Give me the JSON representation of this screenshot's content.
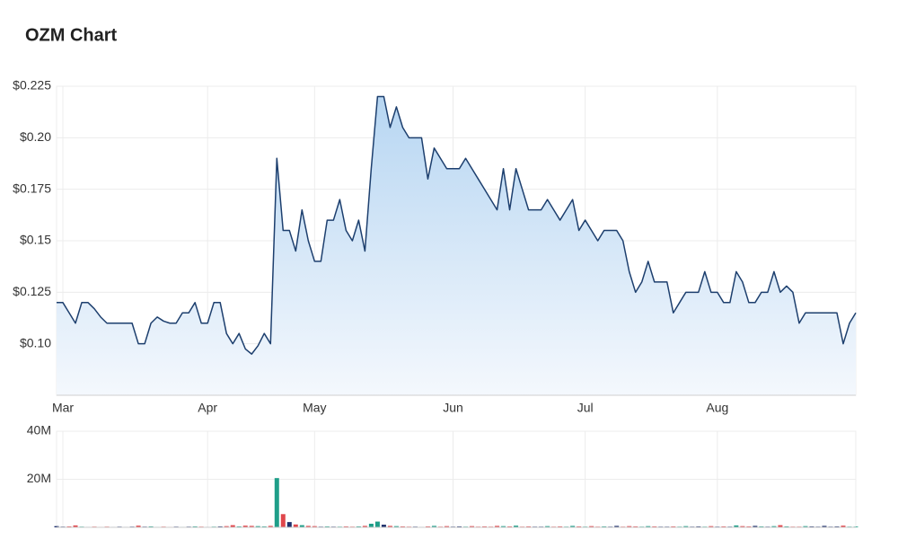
{
  "chart_data": [
    {
      "type": "area",
      "title": "OZM Chart",
      "color": "#1d3f6e",
      "grid": true,
      "categories": [
        null,
        "Mar",
        null,
        null,
        null,
        null,
        null,
        null,
        null,
        null,
        null,
        null,
        null,
        null,
        null,
        null,
        null,
        null,
        null,
        null,
        null,
        null,
        null,
        null,
        "Apr",
        null,
        null,
        null,
        null,
        null,
        null,
        null,
        null,
        null,
        null,
        null,
        null,
        null,
        null,
        null,
        null,
        "May",
        null,
        null,
        null,
        null,
        null,
        null,
        null,
        null,
        null,
        null,
        null,
        null,
        null,
        null,
        null,
        null,
        null,
        null,
        null,
        null,
        null,
        "Jun",
        null,
        null,
        null,
        null,
        null,
        null,
        null,
        null,
        null,
        null,
        null,
        null,
        null,
        null,
        null,
        null,
        null,
        null,
        null,
        null,
        "Jul",
        null,
        null,
        null,
        null,
        null,
        null,
        null,
        null,
        null,
        null,
        null,
        null,
        null,
        null,
        null,
        null,
        null,
        null,
        null,
        null,
        "Aug",
        null,
        null,
        null,
        null,
        null,
        null,
        null,
        null,
        null,
        null,
        null,
        null,
        null,
        null,
        null,
        null,
        null,
        null,
        null,
        null,
        null,
        null
      ],
      "values": [
        0.12,
        0.12,
        0.115,
        0.11,
        0.12,
        0.12,
        0.117,
        0.113,
        0.11,
        0.11,
        0.11,
        0.11,
        0.11,
        0.1,
        0.1,
        0.11,
        0.113,
        0.111,
        0.11,
        0.11,
        0.115,
        0.115,
        0.12,
        0.11,
        0.11,
        0.12,
        0.12,
        0.105,
        0.1,
        0.105,
        0.0975,
        0.095,
        0.099,
        0.105,
        0.1,
        0.19,
        0.155,
        0.155,
        0.145,
        0.165,
        0.15,
        0.14,
        0.14,
        0.16,
        0.16,
        0.17,
        0.155,
        0.15,
        0.16,
        0.145,
        0.185,
        0.22,
        0.22,
        0.205,
        0.215,
        0.205,
        0.2,
        0.2,
        0.2,
        0.18,
        0.195,
        0.19,
        0.185,
        0.185,
        0.185,
        0.19,
        0.185,
        0.18,
        0.175,
        0.17,
        0.165,
        0.185,
        0.165,
        0.185,
        0.175,
        0.165,
        0.165,
        0.165,
        0.17,
        0.165,
        0.16,
        0.165,
        0.17,
        0.155,
        0.16,
        0.155,
        0.15,
        0.155,
        0.155,
        0.155,
        0.15,
        0.135,
        0.125,
        0.13,
        0.14,
        0.13,
        0.13,
        0.13,
        0.115,
        0.12,
        0.125,
        0.125,
        0.125,
        0.135,
        0.125,
        0.125,
        0.12,
        0.12,
        0.135,
        0.13,
        0.12,
        0.12,
        0.125,
        0.125,
        0.135,
        0.125,
        0.128,
        0.125,
        0.11,
        0.115,
        0.115,
        0.115,
        0.115,
        0.115,
        0.115,
        0.1,
        0.11,
        0.115
      ],
      "ylim": [
        0.075,
        0.225
      ],
      "yticks": [
        {
          "value": 0.1,
          "label": "$0.10"
        },
        {
          "value": 0.125,
          "label": "$0.125"
        },
        {
          "value": 0.15,
          "label": "$0.15"
        },
        {
          "value": 0.175,
          "label": "$0.175"
        },
        {
          "value": 0.2,
          "label": "$0.20"
        },
        {
          "value": 0.225,
          "label": "$0.225"
        }
      ]
    },
    {
      "type": "bar",
      "up_color": "#1f9e89",
      "down_color": "#e0474c",
      "flat_color": "#1e2f6b",
      "grid": true,
      "values": [
        500000,
        300000,
        400000,
        800000,
        300000,
        200000,
        300000,
        200000,
        300000,
        200000,
        300000,
        200000,
        300000,
        700000,
        300000,
        400000,
        200000,
        300000,
        200000,
        300000,
        200000,
        300000,
        400000,
        300000,
        200000,
        300000,
        400000,
        500000,
        900000,
        400000,
        700000,
        600000,
        500000,
        400000,
        600000,
        20500000,
        5500000,
        2200000,
        1200000,
        900000,
        600000,
        500000,
        300000,
        400000,
        300000,
        300000,
        400000,
        300000,
        400000,
        600000,
        1500000,
        2400000,
        1100000,
        600000,
        500000,
        400000,
        300000,
        300000,
        200000,
        400000,
        600000,
        300000,
        500000,
        300000,
        400000,
        300000,
        500000,
        300000,
        400000,
        300000,
        600000,
        500000,
        400000,
        700000,
        300000,
        400000,
        300000,
        300000,
        500000,
        300000,
        400000,
        300000,
        600000,
        400000,
        300000,
        500000,
        300000,
        400000,
        300000,
        600000,
        300000,
        500000,
        400000,
        300000,
        500000,
        400000,
        300000,
        300000,
        400000,
        300000,
        500000,
        300000,
        400000,
        300000,
        500000,
        300000,
        400000,
        300000,
        800000,
        500000,
        400000,
        600000,
        400000,
        300000,
        500000,
        900000,
        400000,
        300000,
        300000,
        500000,
        400000,
        300000,
        600000,
        300000,
        400000,
        700000,
        300000,
        300000
      ],
      "ylim": [
        0,
        40000000
      ],
      "yticks": [
        {
          "value": 20000000,
          "label": "20M"
        },
        {
          "value": 40000000,
          "label": "40M"
        }
      ]
    }
  ]
}
